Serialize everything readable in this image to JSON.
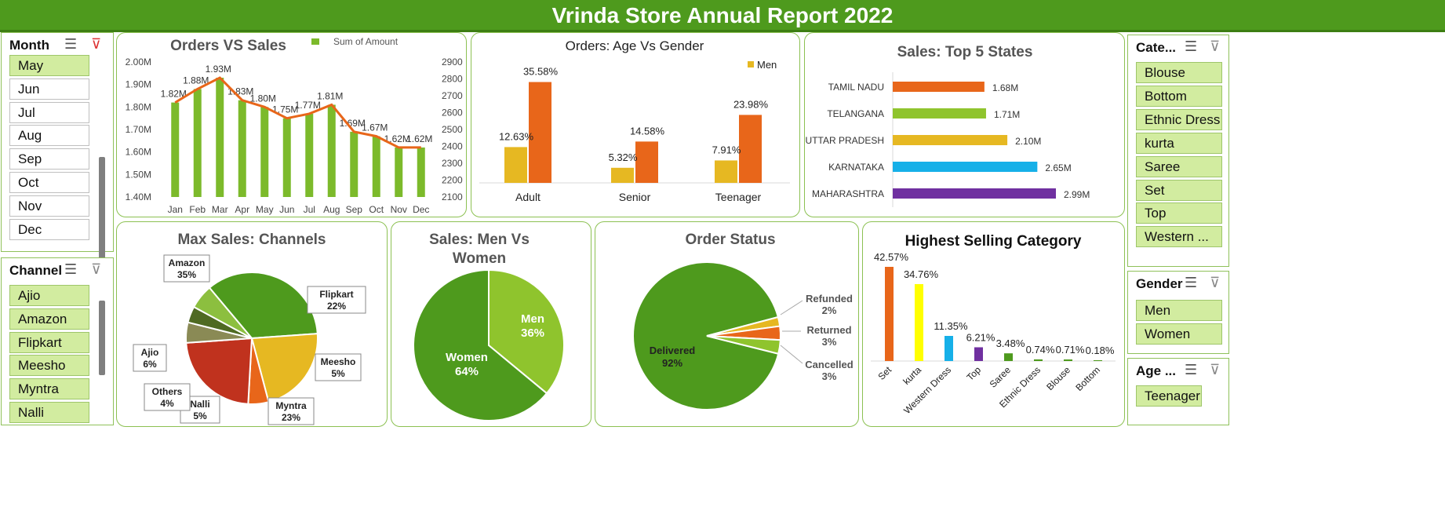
{
  "report_title": "Vrinda Store Annual Report 2022",
  "colors": {
    "green": "#7cba2b",
    "orange": "#e8661a",
    "gold": "#e6b822",
    "purple": "#7030a0",
    "blue": "#16b0e8",
    "darkgreen": "#4e9a1d",
    "lightgreen": "#8fc42d",
    "red": "#c0321e",
    "yellow": "#ffff00"
  },
  "slicers": {
    "month": {
      "title": "Month",
      "items": [
        "May",
        "Jun",
        "Jul",
        "Aug",
        "Sep",
        "Oct",
        "Nov",
        "Dec"
      ],
      "selected": [
        "May"
      ]
    },
    "channel": {
      "title": "Channel",
      "items": [
        "Ajio",
        "Amazon",
        "Flipkart",
        "Meesho",
        "Myntra",
        "Nalli"
      ],
      "selected": [
        "Ajio",
        "Amazon",
        "Flipkart",
        "Meesho",
        "Myntra",
        "Nalli"
      ]
    },
    "category": {
      "title": "Cate...",
      "items": [
        "Blouse",
        "Bottom",
        "Ethnic Dress",
        "kurta",
        "Saree",
        "Set",
        "Top",
        "Western ..."
      ],
      "selected": [
        "Blouse",
        "Bottom",
        "Ethnic Dress",
        "kurta",
        "Saree",
        "Set",
        "Top",
        "Western ..."
      ]
    },
    "gender": {
      "title": "Gender",
      "items": [
        "Men",
        "Women"
      ],
      "selected": [
        "Men",
        "Women"
      ]
    },
    "age": {
      "title": "Age ...",
      "items": [
        "Teenager"
      ],
      "selected": [
        "Teenager"
      ]
    }
  },
  "chart_data": [
    {
      "id": "orders_vs_sales",
      "type": "bar",
      "title": "Orders VS Sales",
      "legend": [
        "Sum of Amount"
      ],
      "categories": [
        "Jan",
        "Feb",
        "Mar",
        "Apr",
        "May",
        "Jun",
        "Jul",
        "Aug",
        "Sep",
        "Oct",
        "Nov",
        "Dec"
      ],
      "series": [
        {
          "name": "Sum of Amount",
          "type": "bar",
          "values": [
            1.82,
            1.88,
            1.93,
            1.83,
            1.8,
            1.75,
            1.77,
            1.81,
            1.69,
            1.67,
            1.62,
            1.62
          ]
        },
        {
          "type": "line",
          "values": [
            1.82,
            1.88,
            1.93,
            1.83,
            1.8,
            1.75,
            1.77,
            1.81,
            1.69,
            1.67,
            1.62,
            1.62
          ]
        }
      ],
      "data_labels": [
        "1.82M",
        "1.88M",
        "1.93M",
        "1.83M",
        "1.80M",
        "1.75M",
        "1.77M",
        "1.81M",
        "1.69M",
        "1.67M",
        "1.62M",
        "1.62M"
      ],
      "ylim": [
        1.4,
        2.0
      ],
      "yticks": [
        "1.40M",
        "1.50M",
        "1.60M",
        "1.70M",
        "1.80M",
        "1.90M",
        "2.00M"
      ],
      "y2ticks": [
        "2100",
        "2200",
        "2300",
        "2400",
        "2500",
        "2600",
        "2700",
        "2800",
        "2900"
      ]
    },
    {
      "id": "age_vs_gender",
      "type": "bar",
      "title": "Orders: Age Vs Gender",
      "legend": [
        "Men"
      ],
      "categories": [
        "Adult",
        "Senior",
        "Teenager"
      ],
      "series": [
        {
          "name": "Men",
          "values": [
            12.63,
            5.32,
            7.91
          ]
        },
        {
          "values": [
            35.58,
            14.58,
            23.98
          ]
        }
      ],
      "data_labels": [
        [
          "12.63%",
          "5.32%",
          "7.91%"
        ],
        [
          "35.58%",
          "14.58%",
          "23.98%"
        ]
      ],
      "ylim": [
        0,
        40
      ]
    },
    {
      "id": "top5_states",
      "type": "bar",
      "orientation": "horizontal",
      "title": "Sales: Top 5 States",
      "categories": [
        "TAMIL NADU",
        "TELANGANA",
        "UTTAR PRADESH",
        "KARNATAKA",
        "MAHARASHTRA"
      ],
      "values": [
        1.68,
        1.71,
        2.1,
        2.65,
        2.99
      ],
      "data_labels": [
        "1.68M",
        "1.71M",
        "2.10M",
        "2.65M",
        "2.99M"
      ]
    },
    {
      "id": "channels",
      "type": "pie",
      "title": "Max Sales: Channels",
      "labels": [
        "Amazon",
        "Flipkart",
        "Meesho",
        "Myntra",
        "Nalli",
        "Others",
        "Ajio"
      ],
      "values": [
        35,
        22,
        5,
        23,
        5,
        4,
        6
      ],
      "display": [
        "35%",
        "22%",
        "5%",
        "23%",
        "5%",
        "4%",
        "6%"
      ]
    },
    {
      "id": "men_vs_women",
      "type": "pie",
      "title": "Sales: Men Vs Women",
      "labels": [
        "Men",
        "Women"
      ],
      "values": [
        36,
        64
      ],
      "display": [
        "36%",
        "64%"
      ]
    },
    {
      "id": "order_status",
      "type": "pie",
      "title": "Order Status",
      "labels": [
        "Delivered",
        "Refunded",
        "Returned",
        "Cancelled"
      ],
      "values": [
        92,
        2,
        3,
        3
      ],
      "display": [
        "92%",
        "2%",
        "3%",
        "3%"
      ]
    },
    {
      "id": "top_category",
      "type": "bar",
      "title": "Highest Selling Category",
      "categories": [
        "Set",
        "kurta",
        "Western Dress",
        "Top",
        "Saree",
        "Ethnic Dress",
        "Blouse",
        "Bottom"
      ],
      "values": [
        42.57,
        34.76,
        11.35,
        6.21,
        3.48,
        0.74,
        0.71,
        0.18
      ],
      "data_labels": [
        "42.57%",
        "34.76%",
        "11.35%",
        "6.21%",
        "3.48%",
        "0.74%",
        "0.71%",
        "0.18%"
      ]
    }
  ]
}
